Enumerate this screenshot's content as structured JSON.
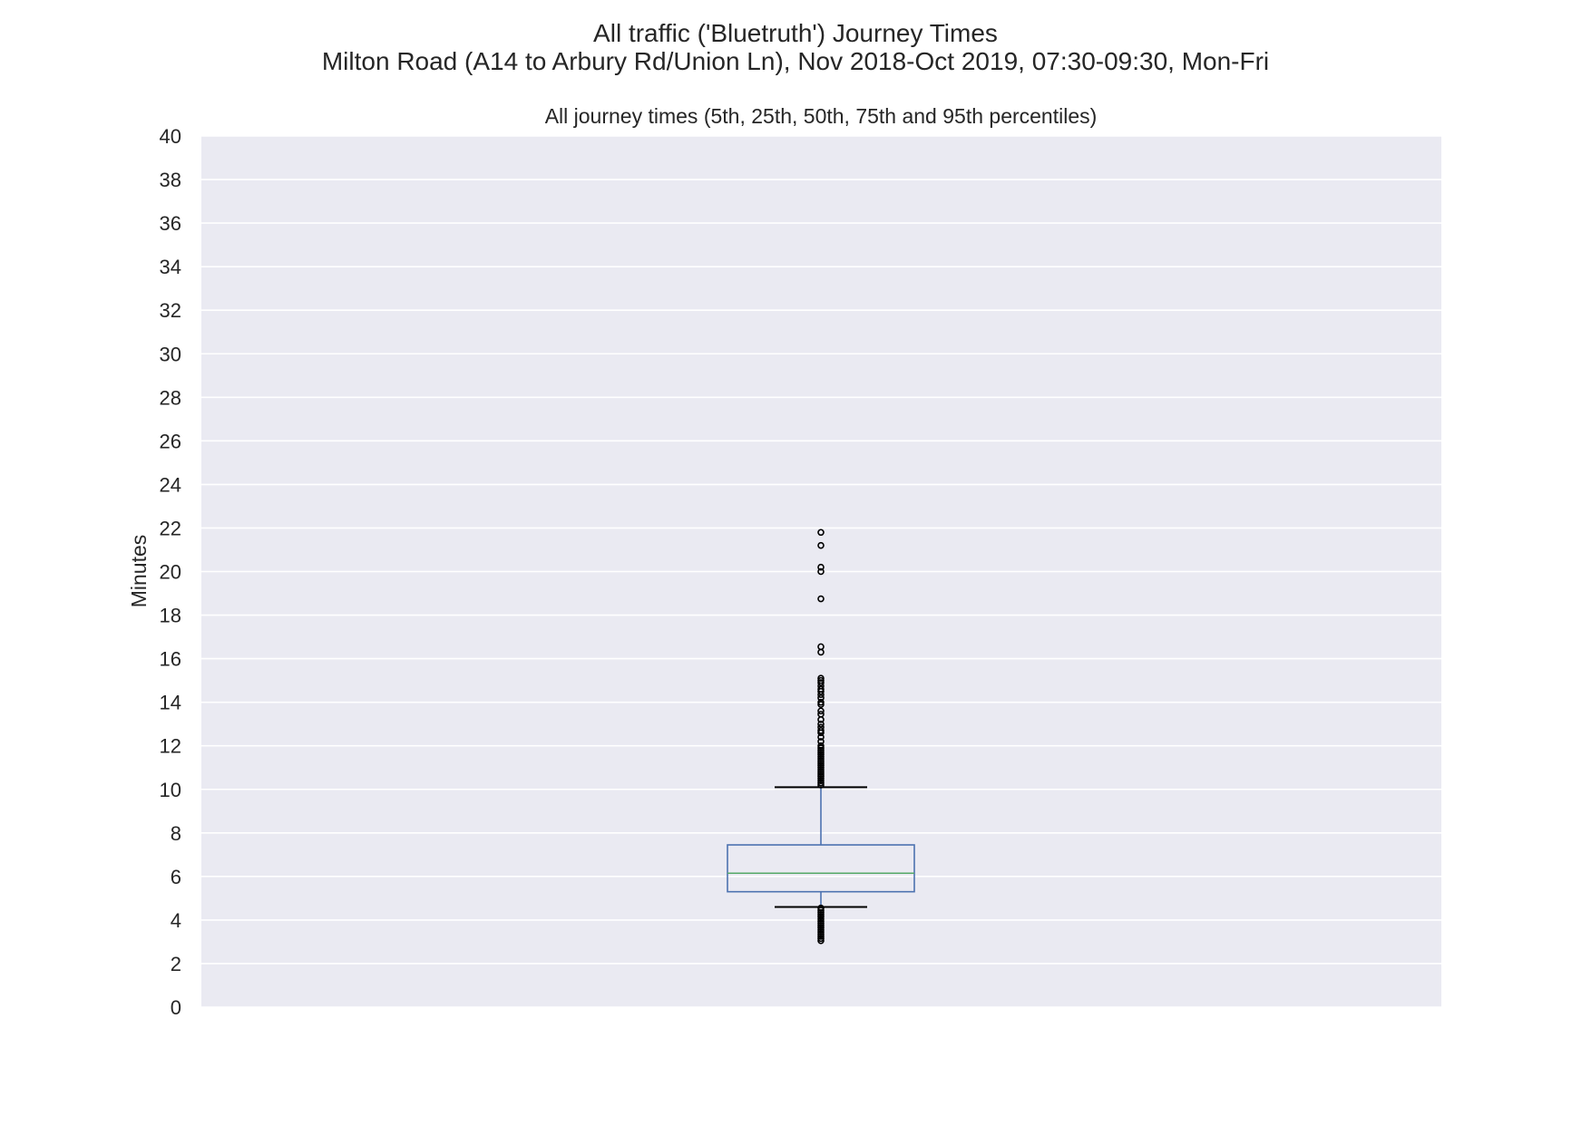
{
  "chart_data": {
    "type": "box",
    "title": "All traffic ('Bluetruth') Journey Times",
    "subtitle": "Milton Road (A14 to Arbury Rd/Union Ln), Nov 2018-Oct 2019, 07:30-09:30, Mon-Fri",
    "axes_title": "All journey times (5th, 25th, 50th, 75th and 95th percentiles)",
    "xlabel": "",
    "ylabel": "Minutes",
    "ylim": [
      0,
      40
    ],
    "yticks": [
      0,
      2,
      4,
      6,
      8,
      10,
      12,
      14,
      16,
      18,
      20,
      22,
      24,
      26,
      28,
      30,
      32,
      34,
      36,
      38,
      40
    ],
    "grid": true,
    "legend": "none",
    "box": {
      "whisker_low": 4.6,
      "q1": 5.3,
      "median": 6.15,
      "q3": 7.45,
      "whisker_high": 10.1
    },
    "outliers_high": [
      21.8,
      21.2,
      20.2,
      20.0,
      18.75,
      16.55,
      16.3,
      15.1,
      15.0,
      14.9,
      14.75,
      14.6,
      14.5,
      14.35,
      14.2,
      14.0,
      13.9,
      13.6,
      13.45,
      13.2,
      13.0,
      12.85,
      12.7,
      12.6,
      12.4,
      12.2,
      12.0,
      11.9,
      11.8,
      11.7,
      11.6,
      11.5,
      11.4,
      11.3,
      11.2,
      11.1,
      11.0,
      10.9,
      10.8,
      10.7,
      10.6,
      10.5,
      10.4,
      10.3,
      10.2
    ],
    "outliers_low": [
      4.55,
      4.45,
      4.35,
      4.25,
      4.15,
      4.05,
      3.95,
      3.85,
      3.75,
      3.65,
      3.55,
      3.45,
      3.35,
      3.25,
      3.15,
      3.05
    ],
    "colors": {
      "plot_background": "#eaeaf2",
      "grid": "#ffffff",
      "box": "#4c72b0",
      "median": "#55a868",
      "caps": "#000000",
      "outliers": "#000000"
    }
  }
}
